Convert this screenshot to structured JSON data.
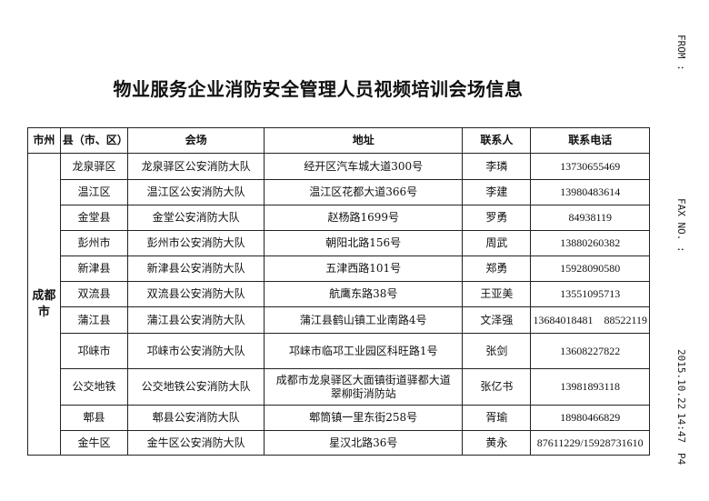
{
  "title": "物业服务企业消防安全管理人员视频培训会场信息",
  "fax_header": {
    "from": "FROM :",
    "fax_no": "FAX NO. :",
    "date": "2015.10.22",
    "time": "14:47",
    "page": "P4"
  },
  "table": {
    "headers": [
      "市州",
      "县（市、区）",
      "会场",
      "地址",
      "联系人",
      "联系电话"
    ],
    "city": "成都市",
    "rows": [
      {
        "county": "龙泉驿区",
        "venue": "龙泉驿区公安消防大队",
        "address": "经开区汽车城大道300号",
        "contact": "李璘",
        "phone": "13730655469"
      },
      {
        "county": "温江区",
        "venue": "温江区公安消防大队",
        "address": "温江区花都大道366号",
        "contact": "李建",
        "phone": "13980483614"
      },
      {
        "county": "金堂县",
        "venue": "金堂公安消防大队",
        "address": "赵杨路1699号",
        "contact": "罗勇",
        "phone": "84938119"
      },
      {
        "county": "彭州市",
        "venue": "彭州市公安消防大队",
        "address": "朝阳北路156号",
        "contact": "周武",
        "phone": "13880260382"
      },
      {
        "county": "新津县",
        "venue": "新津县公安消防大队",
        "address": "五津西路101号",
        "contact": "郑勇",
        "phone": "15928090580"
      },
      {
        "county": "双流县",
        "venue": "双流县公安消防大队",
        "address": "航鹰东路38号",
        "contact": "王亚美",
        "phone": "13551095713"
      },
      {
        "county": "蒲江县",
        "venue": "蒲江县公安消防大队",
        "address": "蒲江县鹤山镇工业南路4号",
        "contact": "文泽强",
        "phone": "13684018481    88522119"
      },
      {
        "county": "邛崃市",
        "venue": "邛崃市公安消防大队",
        "address": "邛崃市临邛工业园区科旺路1号",
        "contact": "张剑",
        "phone": "13608227822"
      },
      {
        "county": "公交地铁",
        "venue": "公交地铁公安消防大队",
        "address": "成都市龙泉驿区大面镇街道驿都大道翠柳街消防站",
        "contact": "张亿书",
        "phone": "13981893118"
      },
      {
        "county": "郫县",
        "venue": "郫县公安消防大队",
        "address": "郫筒镇一里东街258号",
        "contact": "胥瑜",
        "phone": "18980466829"
      },
      {
        "county": "金牛区",
        "venue": "金牛区公安消防大队",
        "address": "星汉北路36号",
        "contact": "黄永",
        "phone": "87611229/15928731610"
      }
    ]
  }
}
